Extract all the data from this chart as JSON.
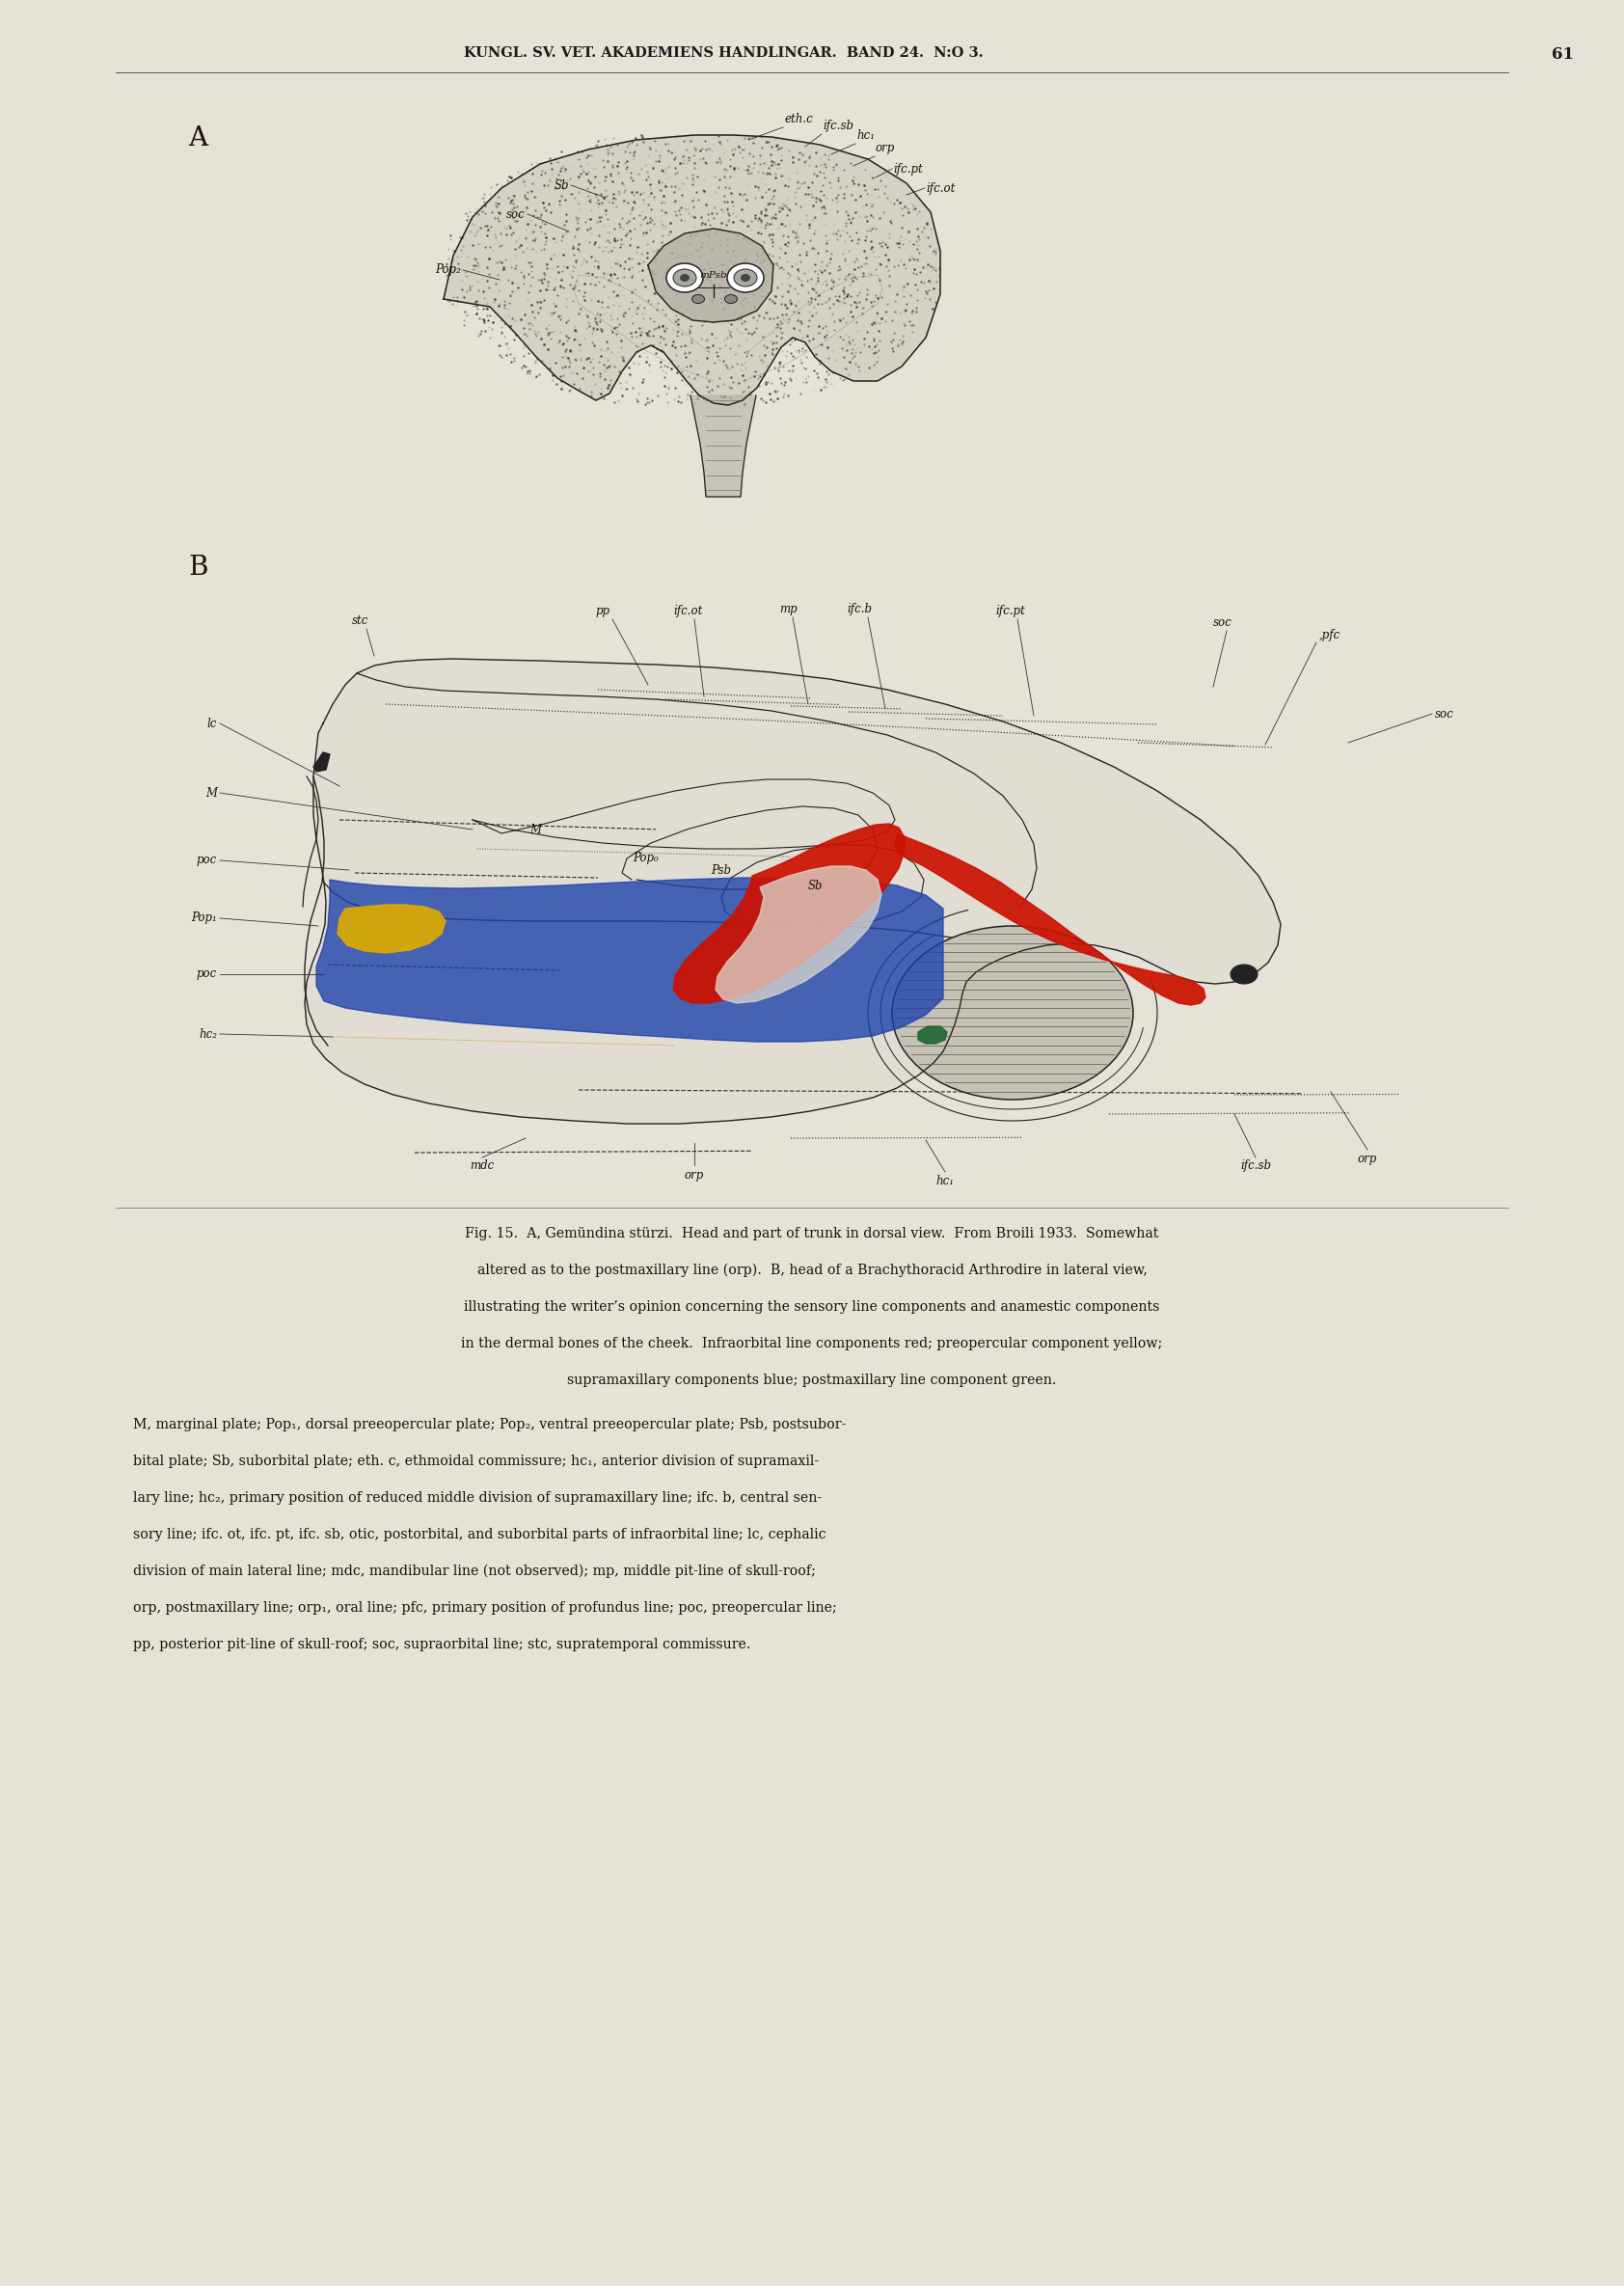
{
  "page_bg": "#e6e2d8",
  "header_text": "KUNGL. SV. VET. AKADEMIENS HANDLINGAR.  BAND 24.  N:O 3.",
  "page_number": "61",
  "header_color": "#1a1a1a",
  "label_A": "A",
  "label_B": "B",
  "caption_line1": "Fig. 15.  A, Gemündina stürzi.  Head and part of trunk in dorsal view.  From Broili 1933.  Somewhat",
  "caption_line2": "altered as to the postmaxillary line (orp).  B, head of a Brachythoracid Arthrodire in lateral view,",
  "caption_line3": "illustrating the writer’s opinion concerning the sensory line components and anamestic components",
  "caption_line4": "in the dermal bones of the cheek.  Infraorbital line components red; preopercular component yellow;",
  "caption_line5": "supramaxillary components blue; postmaxillary line component green.",
  "caption_line6": "M, marginal plate; Pop₁, dorsal preeopercular plate; Pop₂, ventral preeopercular plate; Psb, postsubor-",
  "caption_line7": "bital plate; Sb, suborbital plate; eth. c, ethmoidal commissure; hc₁, anterior division of supramaxil-",
  "caption_line8": "lary line; hc₂, primary position of reduced middle division of supramaxillary line; ifc. b, central sen-",
  "caption_line9": "sory line; ifc. ot, ifc. pt, ifc. sb, otic, postorbital, and suborbital parts of infraorbital line; lc, cephalic",
  "caption_line10": "division of main lateral line; mdc, mandibular line (not observed); mp, middle pit-line of skull-roof;",
  "caption_line11": "orp, postmaxillary line; orp₁, oral line; pfc, primary position of profundus line; poc, preopercular line;",
  "caption_line12": "pp, posterior pit-line of skull-roof; soc, supraorbital line; stc, supratemporal commissure.",
  "text_color": "#1a1008",
  "red_color": "#cc1100",
  "yellow_color": "#ddaa00",
  "blue_color": "#1a3faa",
  "green_color": "#226633",
  "line_color": "#222222",
  "body_fill": "#c8c4b5",
  "light_fill": "#dedad0"
}
